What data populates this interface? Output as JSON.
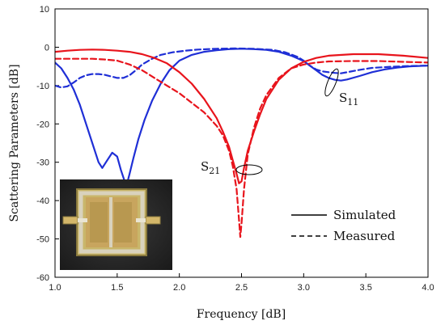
{
  "chart_data": {
    "type": "line",
    "xlabel": "Frequency [dB]",
    "ylabel": "Scattering Parameters [dB]",
    "xlim": [
      1.0,
      4.0
    ],
    "ylim": [
      -60,
      10
    ],
    "x_ticks": [
      "1.0",
      "1.5",
      "2.0",
      "2.5",
      "3.0",
      "3.5",
      "4.0"
    ],
    "y_ticks": [
      "10",
      "0",
      "-10",
      "-20",
      "-30",
      "-40",
      "-50",
      "-60"
    ],
    "grid": false,
    "legend": {
      "placement": "bottom-right",
      "entries": [
        {
          "label": "Simulated",
          "style": "solid"
        },
        {
          "label": "Measured",
          "style": "dashed"
        }
      ]
    },
    "annotations": {
      "s11": {
        "base": "S",
        "sub": "11",
        "x": 3.3,
        "y": -7
      },
      "s21": {
        "base": "S",
        "sub": "21",
        "x": 2.48,
        "y": -30
      }
    },
    "series": [
      {
        "name": "S11 simulated",
        "color": "#1f2fd6",
        "dash": "solid",
        "points": [
          [
            1.0,
            -4
          ],
          [
            1.05,
            -5.5
          ],
          [
            1.1,
            -8
          ],
          [
            1.15,
            -11
          ],
          [
            1.2,
            -15
          ],
          [
            1.25,
            -20
          ],
          [
            1.3,
            -25
          ],
          [
            1.35,
            -30
          ],
          [
            1.38,
            -31.5
          ],
          [
            1.42,
            -29.5
          ],
          [
            1.46,
            -27.5
          ],
          [
            1.5,
            -28.5
          ],
          [
            1.53,
            -32
          ],
          [
            1.56,
            -35
          ],
          [
            1.58,
            -35.5
          ],
          [
            1.6,
            -33
          ],
          [
            1.63,
            -29
          ],
          [
            1.67,
            -24
          ],
          [
            1.72,
            -19
          ],
          [
            1.78,
            -14
          ],
          [
            1.85,
            -9.5
          ],
          [
            1.92,
            -6
          ],
          [
            2.0,
            -3.5
          ],
          [
            2.1,
            -2
          ],
          [
            2.2,
            -1.2
          ],
          [
            2.3,
            -0.8
          ],
          [
            2.4,
            -0.5
          ],
          [
            2.5,
            -0.4
          ],
          [
            2.6,
            -0.5
          ],
          [
            2.7,
            -0.7
          ],
          [
            2.8,
            -1.2
          ],
          [
            2.9,
            -2.2
          ],
          [
            3.0,
            -3.6
          ],
          [
            3.05,
            -4.8
          ],
          [
            3.1,
            -6
          ],
          [
            3.15,
            -7.2
          ],
          [
            3.2,
            -8
          ],
          [
            3.25,
            -8.5
          ],
          [
            3.3,
            -8.7
          ],
          [
            3.35,
            -8.4
          ],
          [
            3.45,
            -7.5
          ],
          [
            3.55,
            -6.5
          ],
          [
            3.65,
            -5.8
          ],
          [
            3.75,
            -5.3
          ],
          [
            3.85,
            -5
          ],
          [
            4.0,
            -4.8
          ]
        ]
      },
      {
        "name": "S11 measured",
        "color": "#1f2fd6",
        "dash": "dashed",
        "points": [
          [
            1.0,
            -10
          ],
          [
            1.05,
            -10.5
          ],
          [
            1.1,
            -10.2
          ],
          [
            1.15,
            -9.2
          ],
          [
            1.2,
            -8
          ],
          [
            1.25,
            -7.3
          ],
          [
            1.3,
            -7
          ],
          [
            1.35,
            -7
          ],
          [
            1.4,
            -7.2
          ],
          [
            1.45,
            -7.6
          ],
          [
            1.5,
            -8
          ],
          [
            1.55,
            -8
          ],
          [
            1.6,
            -7.3
          ],
          [
            1.65,
            -6
          ],
          [
            1.7,
            -4.5
          ],
          [
            1.78,
            -3
          ],
          [
            1.85,
            -2
          ],
          [
            1.95,
            -1.3
          ],
          [
            2.05,
            -0.9
          ],
          [
            2.15,
            -0.6
          ],
          [
            2.3,
            -0.4
          ],
          [
            2.45,
            -0.3
          ],
          [
            2.6,
            -0.4
          ],
          [
            2.75,
            -0.7
          ],
          [
            2.85,
            -1.3
          ],
          [
            2.95,
            -2.5
          ],
          [
            3.0,
            -3.5
          ],
          [
            3.05,
            -4.8
          ],
          [
            3.1,
            -5.8
          ],
          [
            3.15,
            -6.3
          ],
          [
            3.2,
            -6.5
          ],
          [
            3.25,
            -6.7
          ],
          [
            3.3,
            -6.8
          ],
          [
            3.35,
            -6.5
          ],
          [
            3.45,
            -5.9
          ],
          [
            3.55,
            -5.4
          ],
          [
            3.7,
            -5.1
          ],
          [
            3.85,
            -4.9
          ],
          [
            4.0,
            -4.8
          ]
        ]
      },
      {
        "name": "S21 simulated",
        "color": "#e8141c",
        "dash": "solid",
        "points": [
          [
            1.0,
            -1.2
          ],
          [
            1.1,
            -0.9
          ],
          [
            1.2,
            -0.7
          ],
          [
            1.3,
            -0.6
          ],
          [
            1.4,
            -0.7
          ],
          [
            1.5,
            -0.9
          ],
          [
            1.6,
            -1.2
          ],
          [
            1.7,
            -1.8
          ],
          [
            1.8,
            -2.8
          ],
          [
            1.9,
            -4.2
          ],
          [
            2.0,
            -6.5
          ],
          [
            2.1,
            -9.5
          ],
          [
            2.2,
            -13.5
          ],
          [
            2.3,
            -18.5
          ],
          [
            2.35,
            -22
          ],
          [
            2.4,
            -26
          ],
          [
            2.43,
            -29.5
          ],
          [
            2.46,
            -33
          ],
          [
            2.48,
            -35.5
          ],
          [
            2.5,
            -35
          ],
          [
            2.52,
            -31.5
          ],
          [
            2.55,
            -27
          ],
          [
            2.6,
            -22
          ],
          [
            2.65,
            -17.5
          ],
          [
            2.7,
            -13.5
          ],
          [
            2.8,
            -8.5
          ],
          [
            2.9,
            -5.5
          ],
          [
            3.0,
            -3.8
          ],
          [
            3.1,
            -2.8
          ],
          [
            3.2,
            -2.2
          ],
          [
            3.4,
            -1.8
          ],
          [
            3.6,
            -1.8
          ],
          [
            3.8,
            -2.2
          ],
          [
            4.0,
            -2.8
          ]
        ]
      },
      {
        "name": "S21 measured",
        "color": "#e8141c",
        "dash": "dashed",
        "points": [
          [
            1.0,
            -3
          ],
          [
            1.1,
            -3
          ],
          [
            1.2,
            -3
          ],
          [
            1.3,
            -3
          ],
          [
            1.4,
            -3.2
          ],
          [
            1.5,
            -3.5
          ],
          [
            1.6,
            -4.5
          ],
          [
            1.7,
            -6
          ],
          [
            1.8,
            -8
          ],
          [
            1.9,
            -10
          ],
          [
            2.0,
            -12
          ],
          [
            2.1,
            -14.5
          ],
          [
            2.2,
            -17
          ],
          [
            2.3,
            -20.5
          ],
          [
            2.35,
            -23
          ],
          [
            2.4,
            -27
          ],
          [
            2.43,
            -31
          ],
          [
            2.46,
            -37
          ],
          [
            2.48,
            -45
          ],
          [
            2.49,
            -49.5
          ],
          [
            2.5,
            -46
          ],
          [
            2.52,
            -37
          ],
          [
            2.55,
            -28
          ],
          [
            2.6,
            -21
          ],
          [
            2.65,
            -16
          ],
          [
            2.7,
            -12.5
          ],
          [
            2.8,
            -8
          ],
          [
            2.9,
            -5.5
          ],
          [
            3.0,
            -4.5
          ],
          [
            3.1,
            -4
          ],
          [
            3.2,
            -3.7
          ],
          [
            3.4,
            -3.6
          ],
          [
            3.6,
            -3.6
          ],
          [
            3.8,
            -3.8
          ],
          [
            4.0,
            -4
          ]
        ]
      }
    ]
  }
}
